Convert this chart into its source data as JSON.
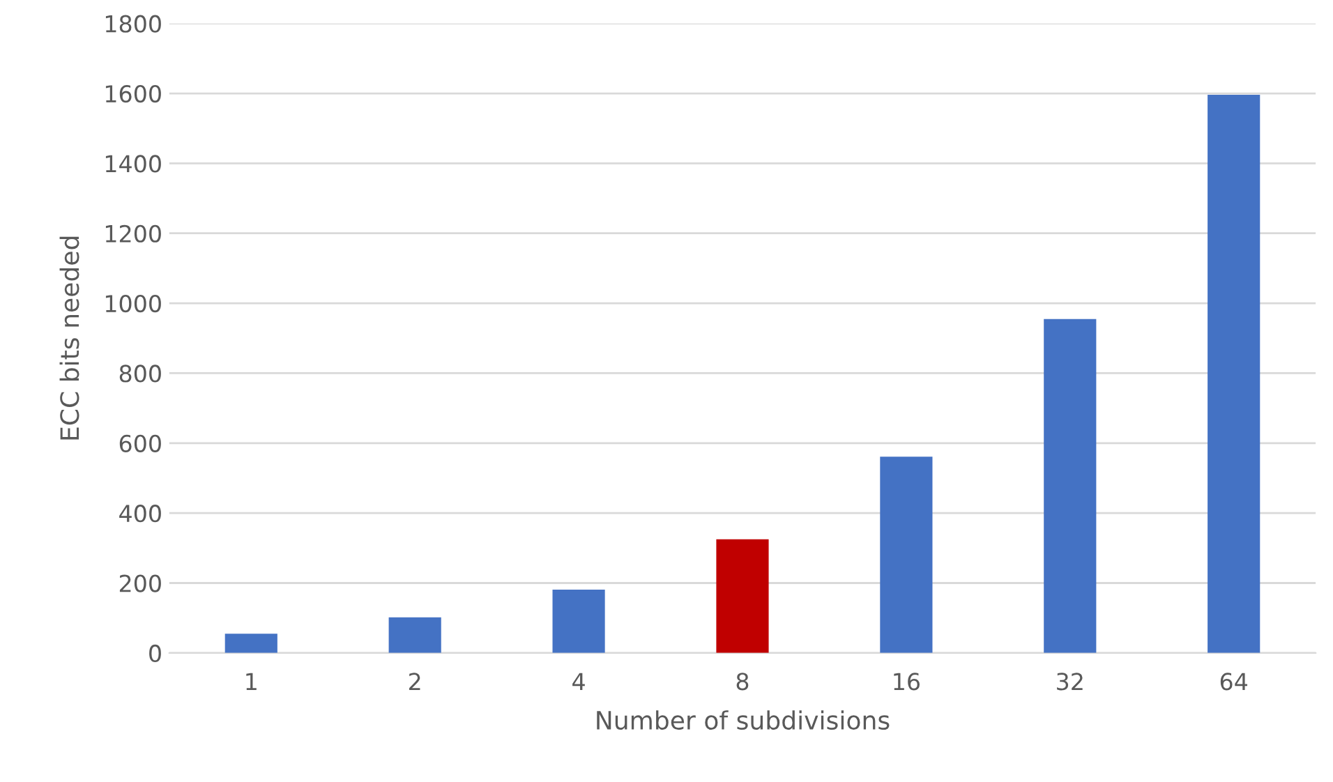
{
  "chart_data": {
    "type": "bar",
    "xlabel": "Number of subdivisions",
    "ylabel": "ECC bits needed",
    "categories": [
      "1",
      "2",
      "4",
      "8",
      "16",
      "32",
      "64"
    ],
    "values": [
      55,
      102,
      181,
      325,
      561,
      955,
      1596
    ],
    "colors": [
      "#4472c4",
      "#4472c4",
      "#4472c4",
      "#c00000",
      "#4472c4",
      "#4472c4",
      "#4472c4"
    ],
    "ylim": [
      0,
      1800
    ],
    "yticks": [
      0,
      200,
      400,
      600,
      800,
      1000,
      1200,
      1400,
      1600,
      1800
    ],
    "grid": "y"
  }
}
